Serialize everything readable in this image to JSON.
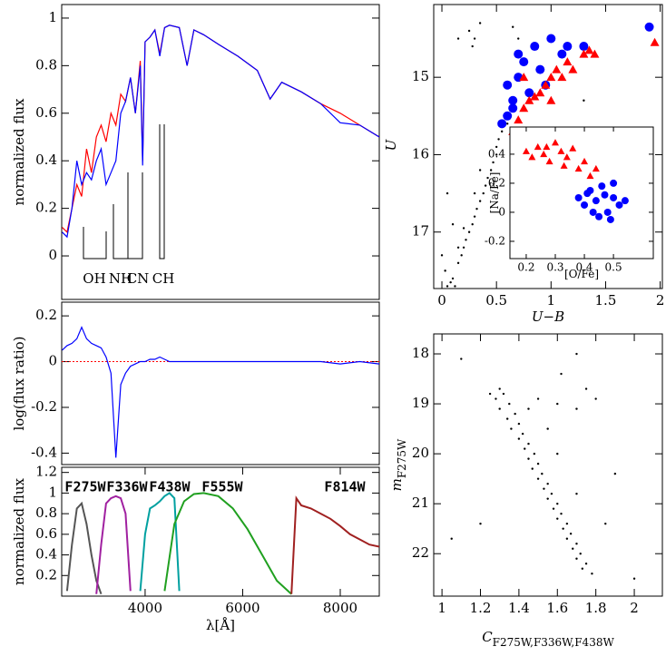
{
  "chart_data": [
    {
      "type": "line",
      "ylabel": "normalized flux",
      "x": [
        2300,
        2400,
        2500,
        2600,
        2700,
        2800,
        2900,
        3000,
        3100,
        3200,
        3300,
        3400,
        3500,
        3600,
        3700,
        3800,
        3900,
        3950,
        4000,
        4100,
        4200,
        4300,
        4400,
        4500,
        4700,
        4861,
        5000,
        5200,
        5500,
        5900,
        6300,
        6563,
        6800,
        7200,
        7600,
        8000,
        8400,
        8800
      ],
      "series": [
        {
          "color": "#ff0000",
          "values": [
            0.12,
            0.1,
            0.2,
            0.3,
            0.25,
            0.45,
            0.35,
            0.5,
            0.55,
            0.48,
            0.6,
            0.55,
            0.68,
            0.65,
            0.75,
            0.6,
            0.82,
            0.4,
            0.9,
            0.92,
            0.95,
            0.85,
            0.96,
            0.97,
            0.96,
            0.8,
            0.95,
            0.93,
            0.89,
            0.84,
            0.78,
            0.66,
            0.73,
            0.69,
            0.64,
            0.6,
            0.55,
            0.5
          ]
        },
        {
          "color": "#0000ff",
          "values": [
            0.1,
            0.08,
            0.2,
            0.4,
            0.3,
            0.35,
            0.32,
            0.4,
            0.45,
            0.3,
            0.35,
            0.4,
            0.6,
            0.65,
            0.75,
            0.6,
            0.8,
            0.38,
            0.9,
            0.92,
            0.95,
            0.84,
            0.96,
            0.97,
            0.96,
            0.8,
            0.95,
            0.93,
            0.89,
            0.84,
            0.78,
            0.66,
            0.73,
            0.69,
            0.64,
            0.56,
            0.55,
            0.5
          ]
        }
      ],
      "annotations": [
        "OH",
        "NH",
        "CN",
        "CH"
      ],
      "xlim": [
        2290,
        8800
      ],
      "ylim": [
        -0.183,
        1.057
      ],
      "yticks": [
        0,
        0.2,
        0.4,
        0.6,
        0.8,
        1
      ]
    },
    {
      "type": "line",
      "ylabel": "log(flux ratio)",
      "x": [
        2300,
        2400,
        2500,
        2600,
        2700,
        2800,
        2900,
        3000,
        3100,
        3200,
        3300,
        3400,
        3500,
        3600,
        3700,
        3800,
        3900,
        3950,
        4000,
        4100,
        4200,
        4300,
        4400,
        4500,
        4700,
        4861,
        5000,
        5200,
        5500,
        5900,
        6300,
        6563,
        6800,
        7200,
        7600,
        8000,
        8400,
        8800
      ],
      "series": [
        {
          "color": "#0000ff",
          "values": [
            0.05,
            0.07,
            0.08,
            0.1,
            0.15,
            0.1,
            0.08,
            0.07,
            0.06,
            0.02,
            -0.05,
            -0.42,
            -0.1,
            -0.05,
            -0.02,
            -0.01,
            0,
            0,
            0,
            0.01,
            0.01,
            0.02,
            0.01,
            0,
            0,
            0,
            0,
            0,
            0,
            0,
            0,
            0,
            0,
            0,
            0,
            -0.01,
            0,
            -0.01
          ]
        }
      ],
      "reference_line": 0,
      "reference_color": "#ff0000",
      "xlim": [
        2290,
        8800
      ],
      "ylim": [
        -0.45,
        0.26
      ],
      "yticks": [
        -0.4,
        -0.2,
        0,
        0.2
      ]
    },
    {
      "type": "line",
      "ylabel": "normalized flux",
      "xlabel": "λ[Å]",
      "series": [
        {
          "name": "F275W",
          "color": "#555555",
          "x": [
            2400,
            2500,
            2600,
            2700,
            2800,
            2900,
            3000,
            3100
          ],
          "values": [
            0.05,
            0.5,
            0.85,
            0.9,
            0.7,
            0.4,
            0.15,
            0.02
          ]
        },
        {
          "name": "F336W",
          "color": "#a020a0",
          "x": [
            3000,
            3100,
            3200,
            3300,
            3400,
            3500,
            3600,
            3700
          ],
          "values": [
            0.02,
            0.5,
            0.9,
            0.95,
            0.97,
            0.95,
            0.8,
            0.05
          ]
        },
        {
          "name": "F438W",
          "color": "#00a0a0",
          "x": [
            3900,
            4000,
            4100,
            4200,
            4300,
            4400,
            4500,
            4600,
            4700
          ],
          "values": [
            0.05,
            0.6,
            0.85,
            0.88,
            0.92,
            0.97,
            1.0,
            0.95,
            0.05
          ]
        },
        {
          "name": "F555W",
          "color": "#20a020",
          "x": [
            4400,
            4600,
            4800,
            5000,
            5200,
            5500,
            5800,
            6100,
            6400,
            6700,
            7000
          ],
          "values": [
            0.05,
            0.7,
            0.92,
            0.99,
            1.0,
            0.97,
            0.85,
            0.65,
            0.4,
            0.15,
            0.02
          ]
        },
        {
          "name": "F814W",
          "color": "#a02020",
          "x": [
            7000,
            7100,
            7200,
            7400,
            7600,
            7800,
            8000,
            8200,
            8400,
            8600,
            8800
          ],
          "values": [
            0.02,
            0.95,
            0.88,
            0.85,
            0.8,
            0.75,
            0.68,
            0.6,
            0.55,
            0.5,
            0.48
          ]
        }
      ],
      "xlim": [
        2290,
        8800
      ],
      "ylim": [
        0,
        1.25
      ],
      "xticks": [
        4000,
        6000,
        8000
      ],
      "yticks": [
        0.2,
        0.4,
        0.6,
        0.8,
        1,
        1.2
      ]
    },
    {
      "type": "scatter",
      "ylabel": "U",
      "xlabel": "U−B",
      "series": [
        {
          "color": "#000000",
          "marker": "dot",
          "x": [
            0.05,
            0.08,
            0.1,
            0.12,
            0.03,
            0.15,
            0.18,
            0.2,
            0.22,
            0.25,
            0.28,
            0.3,
            0.32,
            0.35,
            0.38,
            0.4,
            0.42,
            0.45,
            0.47,
            0.5,
            0.5,
            0.52,
            0.1,
            0.15,
            0.2,
            0.3,
            0.35,
            0.25,
            0.3,
            0.35,
            0.28,
            0.65,
            0.7,
            0.15,
            1.3,
            0.9,
            1.5,
            1.2,
            0.05,
            0.0,
            0.6,
            0.55
          ],
          "values": [
            17.7,
            17.65,
            17.6,
            17.7,
            17.5,
            17.4,
            17.3,
            17.2,
            17.1,
            17.0,
            16.9,
            16.8,
            16.7,
            16.6,
            16.5,
            16.4,
            16.3,
            16.2,
            16.1,
            16.0,
            15.9,
            15.8,
            16.9,
            17.2,
            16.95,
            16.5,
            16.2,
            14.4,
            14.5,
            14.3,
            14.6,
            14.35,
            14.5,
            14.5,
            15.3,
            16.5,
            16.0,
            17.1,
            16.5,
            17.3,
            15.6,
            15.7
          ]
        },
        {
          "color": "#0000ff",
          "marker": "circle",
          "x": [
            0.6,
            0.65,
            0.7,
            0.75,
            0.8,
            0.55,
            0.6,
            0.7,
            0.85,
            0.95,
            1.0,
            1.1,
            1.15,
            1.3,
            1.9,
            0.65,
            0.9
          ],
          "values": [
            15.1,
            15.3,
            15.0,
            14.8,
            15.2,
            15.6,
            15.5,
            14.7,
            14.6,
            15.1,
            14.5,
            14.7,
            14.6,
            14.6,
            14.35,
            15.4,
            14.9
          ]
        },
        {
          "color": "#ff0000",
          "marker": "triangle",
          "x": [
            0.65,
            0.7,
            0.75,
            0.8,
            0.85,
            0.9,
            0.95,
            1.0,
            1.05,
            1.1,
            1.15,
            1.2,
            1.3,
            1.35,
            1.4,
            1.95,
            0.75,
            1.0
          ],
          "values": [
            15.7,
            15.55,
            15.4,
            15.3,
            15.25,
            15.2,
            15.1,
            15.0,
            14.9,
            15.0,
            14.8,
            14.9,
            14.7,
            14.65,
            14.7,
            14.55,
            15.0,
            15.3
          ]
        }
      ],
      "xlim": [
        -0.075,
        2.02
      ],
      "ylim": [
        17.73,
        14.06
      ],
      "xticks": [
        0,
        0.5,
        1,
        1.5,
        2
      ],
      "yticks": [
        15,
        16,
        17
      ]
    },
    {
      "type": "scatter",
      "ylabel": "[Na/Fe]",
      "xlabel": "[O/Fe]",
      "series": [
        {
          "color": "#ff0000",
          "marker": "triangle",
          "x": [
            0.2,
            0.22,
            0.24,
            0.26,
            0.28,
            0.3,
            0.32,
            0.34,
            0.36,
            0.38,
            0.4,
            0.42,
            0.44,
            0.33,
            0.27
          ],
          "values": [
            0.42,
            0.38,
            0.45,
            0.4,
            0.35,
            0.48,
            0.42,
            0.38,
            0.44,
            0.3,
            0.35,
            0.25,
            0.3,
            0.32,
            0.45
          ]
        },
        {
          "color": "#0000ff",
          "marker": "circle",
          "x": [
            0.38,
            0.4,
            0.42,
            0.44,
            0.46,
            0.48,
            0.5,
            0.52,
            0.45,
            0.47,
            0.43,
            0.5,
            0.54,
            0.41,
            0.49
          ],
          "values": [
            0.1,
            0.05,
            0.15,
            0.08,
            0.18,
            0.0,
            0.1,
            0.05,
            -0.03,
            0.12,
            0.0,
            0.2,
            0.08,
            0.13,
            -0.05
          ]
        }
      ],
      "xlim": [
        0.144,
        0.637
      ],
      "ylim": [
        -0.319,
        0.587
      ],
      "xticks": [
        0.2,
        0.3,
        0.4,
        0.5
      ],
      "yticks": [
        -0.2,
        0,
        0.2,
        0.4
      ]
    },
    {
      "type": "scatter",
      "ylabel": "m",
      "ylabel_sub": "F275W",
      "xlabel": "C",
      "xlabel_sub": "F275W,F336W,F438W",
      "series": [
        {
          "color": "#000000",
          "marker": "dot",
          "x": [
            1.25,
            1.3,
            1.28,
            1.32,
            1.35,
            1.3,
            1.38,
            1.34,
            1.4,
            1.36,
            1.42,
            1.4,
            1.45,
            1.43,
            1.48,
            1.45,
            1.5,
            1.47,
            1.52,
            1.5,
            1.55,
            1.53,
            1.57,
            1.55,
            1.6,
            1.58,
            1.62,
            1.6,
            1.65,
            1.63,
            1.67,
            1.65,
            1.7,
            1.68,
            1.72,
            1.7,
            1.75,
            1.73,
            1.78,
            1.6,
            1.7,
            1.8,
            1.75,
            1.5,
            1.1,
            1.9,
            2.0,
            1.2,
            1.05,
            1.85,
            1.62,
            1.7,
            1.45,
            1.55,
            1.6,
            1.7
          ],
          "values": [
            18.8,
            18.7,
            18.9,
            18.8,
            19.0,
            19.1,
            19.2,
            19.3,
            19.4,
            19.5,
            19.6,
            19.7,
            19.8,
            19.9,
            20.0,
            20.1,
            20.2,
            20.3,
            20.4,
            20.5,
            20.6,
            20.7,
            20.8,
            20.9,
            21.0,
            21.1,
            21.2,
            21.3,
            21.4,
            21.5,
            21.6,
            21.7,
            21.8,
            21.9,
            22.0,
            22.1,
            22.2,
            22.3,
            22.4,
            19.0,
            19.1,
            18.9,
            18.7,
            18.9,
            18.1,
            20.4,
            22.5,
            21.4,
            21.7,
            21.4,
            18.4,
            18.0,
            19.1,
            19.5,
            20.0,
            20.8
          ]
        }
      ],
      "xlim": [
        0.957,
        2.146
      ],
      "ylim": [
        22.85,
        17.6
      ],
      "xticks": [
        1,
        1.2,
        1.4,
        1.6,
        1.8,
        2
      ],
      "yticks": [
        18,
        19,
        20,
        21,
        22
      ]
    }
  ]
}
